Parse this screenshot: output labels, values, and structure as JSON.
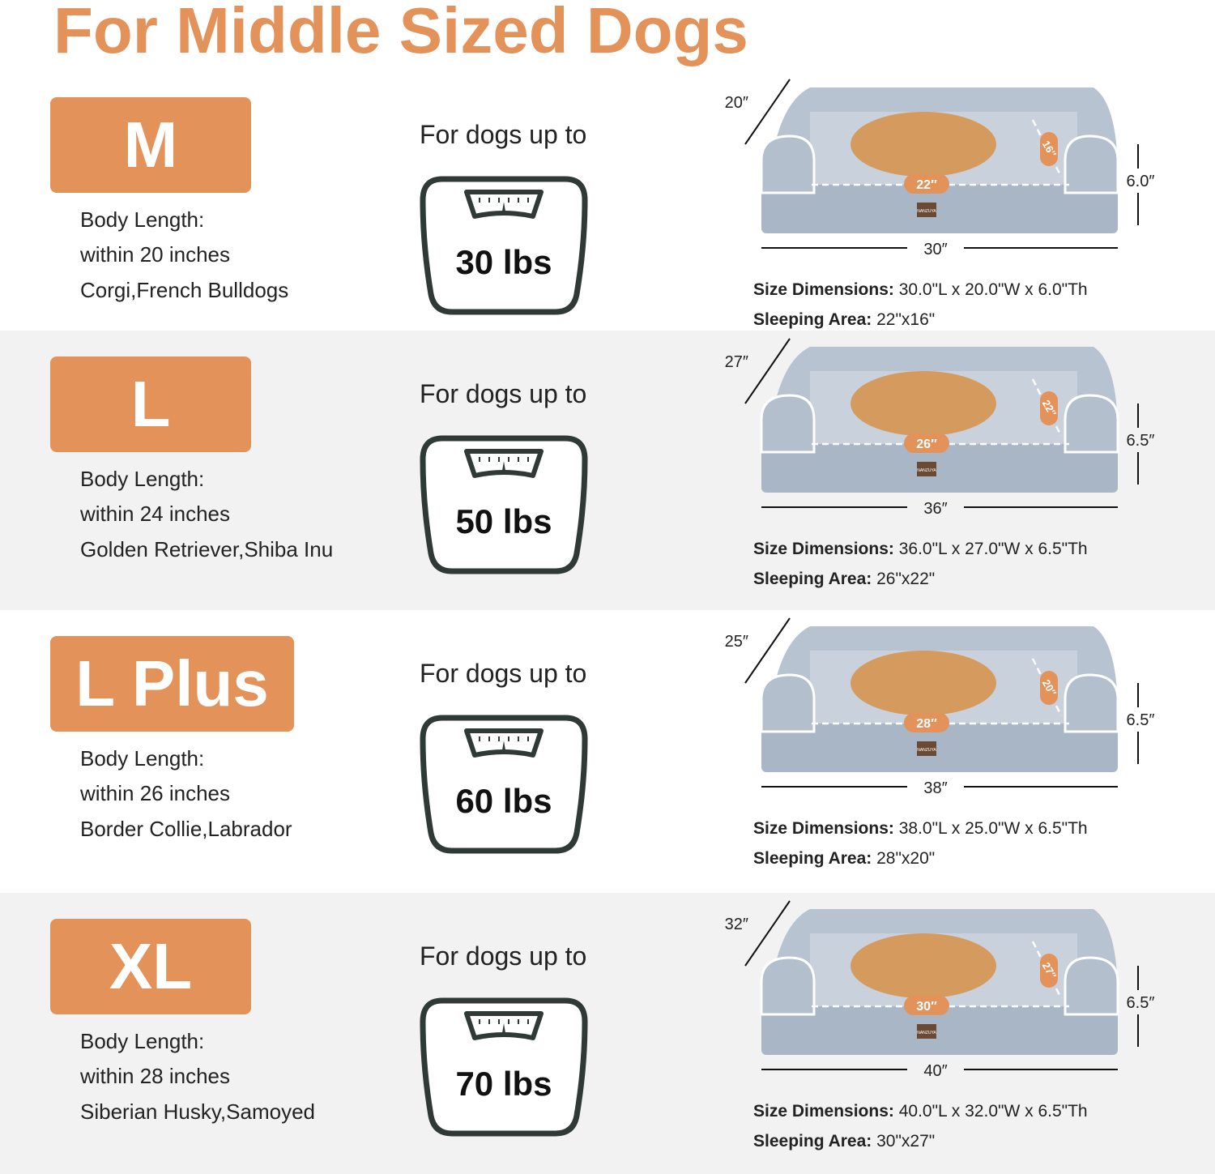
{
  "title": "For Middle Sized Dogs",
  "colors": {
    "accent": "#e3925a",
    "bed": "#a9b6c6",
    "alt_row_bg": "#f2f2f2"
  },
  "common": {
    "for_dogs_label": "For dogs up to",
    "size_dims_label": "Size Dimensions:",
    "sleeping_area_label": "Sleeping Area:",
    "brand_tag": "NANZUYA"
  },
  "sizes": [
    {
      "size": "M",
      "body_label": "Body Length:",
      "body_length": "within 20 inches",
      "breeds": "Corgi,French Bulldogs",
      "weight": "30 lbs",
      "length": "30″",
      "width": "20″",
      "height": "6.0″",
      "inner_length": "22″",
      "inner_width": "16″",
      "dimensions": "30.0\"L x 20.0\"W x 6.0\"Th",
      "sleeping_area": "22\"x16\"",
      "dog": "corgi"
    },
    {
      "size": "L",
      "body_label": "Body Length:",
      "body_length": "within 24 inches",
      "breeds": "Golden Retriever,Shiba Inu",
      "weight": "50 lbs",
      "length": "36″",
      "width": "27″",
      "height": "6.5″",
      "inner_length": "26″",
      "inner_width": "22″",
      "dimensions": "36.0\"L x 27.0\"W x 6.5\"Th",
      "sleeping_area": " 26\"x22\"",
      "dog": "golden retriever"
    },
    {
      "size": "L Plus",
      "body_label": "Body Length:",
      "body_length": "within 26 inches",
      "breeds": "Border Collie,Labrador",
      "weight": "60 lbs",
      "length": "38″",
      "width": "25″",
      "height": "6.5″",
      "inner_length": "28″",
      "inner_width": "20″",
      "dimensions": "38.0\"L x 25.0\"W x 6.5\"Th",
      "sleeping_area": "28\"x20\"",
      "dog": "labrador"
    },
    {
      "size": "XL",
      "body_label": "Body Length:",
      "body_length": "within 28 inches",
      "breeds": "Siberian Husky,Samoyed",
      "weight": "70 lbs",
      "length": "40″",
      "width": "32″",
      "height": "6.5″",
      "inner_length": "30″",
      "inner_width": "27″",
      "dimensions": "40.0\"L x 32.0\"W x 6.5\"Th",
      "sleeping_area": "30\"x27\"",
      "dog": "husky"
    }
  ]
}
